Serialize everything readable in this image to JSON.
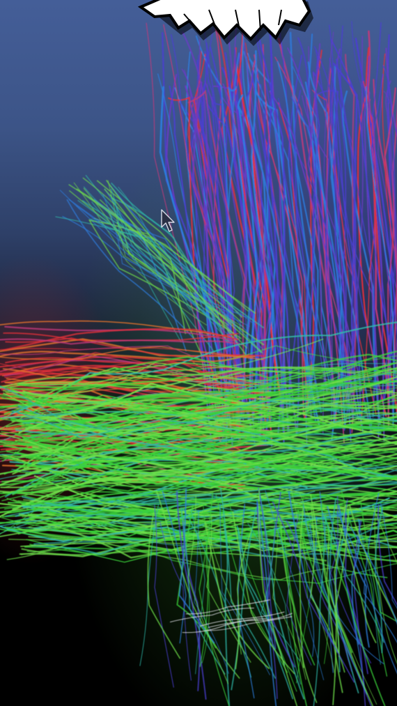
{
  "image": {
    "subject": "fiber-tractography",
    "background_colors": [
      "#445e98",
      "#2e4068",
      "#000000"
    ],
    "fiber_colors": [
      "#3bd23a",
      "#6fe04a",
      "#2fb7a8",
      "#4a3fd0",
      "#6a3bc4",
      "#e0303a",
      "#c23a7a",
      "#e8742a",
      "#2c7de0"
    ]
  },
  "overlay": {
    "burst_fill": "#ffffff",
    "burst_stroke": "#000000"
  },
  "pointer": {
    "icon": "mouse-cursor-icon"
  }
}
